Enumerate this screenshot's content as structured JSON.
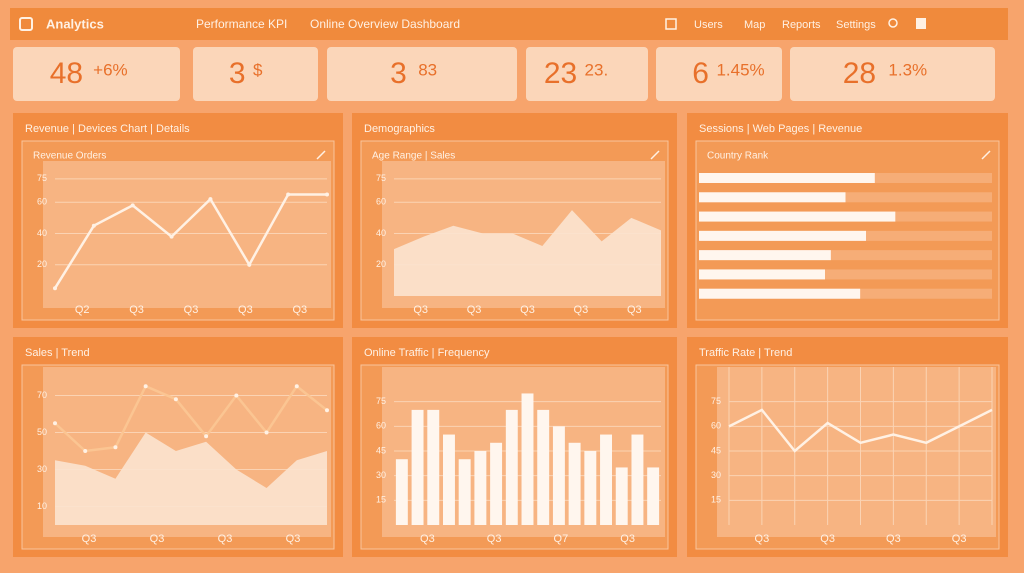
{
  "header": {
    "brand": "Analytics",
    "subtitle": "Performance KPI",
    "title": "Online Overview Dashboard",
    "nav": [
      "Users",
      "Map",
      "Reports",
      "Settings"
    ]
  },
  "kpis": [
    {
      "value": "48",
      "note": "+6%"
    },
    {
      "value": "3",
      "note": "$"
    },
    {
      "value": "3",
      "note": "83"
    },
    {
      "value": "23",
      "note": "23."
    },
    {
      "value": "6",
      "note": "1.45%"
    },
    {
      "value": "28",
      "note": "1.3%"
    }
  ],
  "panels": [
    {
      "title": "Revenue | Devices Chart | Details",
      "subtitle": "Revenue Orders",
      "chart": {
        "type": "line",
        "color": "#fff1e4",
        "values": [
          5,
          45,
          58,
          38,
          62,
          20,
          65,
          65
        ],
        "ylim": [
          0,
          80
        ],
        "yticks": [
          20,
          40,
          60,
          75
        ],
        "xlabels": [
          "Q2",
          "Q3",
          "Q3",
          "Q3",
          "Q3"
        ]
      }
    },
    {
      "title": "Demographics",
      "subtitle": "Age Range | Sales",
      "chart": {
        "type": "area",
        "color": "#fbe3cf",
        "values": [
          30,
          38,
          45,
          40,
          40,
          32,
          55,
          35,
          50,
          42
        ],
        "ylim": [
          0,
          80
        ],
        "yticks": [
          20,
          40,
          60,
          75
        ],
        "xlabels": [
          "Q3",
          "Q3",
          "Q3",
          "Q3",
          "Q3"
        ]
      }
    },
    {
      "title": "Sessions | Web Pages | Revenue",
      "subtitle": "Country Rank",
      "chart": {
        "type": "hbar",
        "color": "#fff6ee",
        "values": [
          60,
          50,
          67,
          57,
          45,
          43,
          55
        ],
        "xlim": [
          0,
          100
        ]
      }
    },
    {
      "title": "Sales | Trend",
      "subtitle": "",
      "chart": {
        "type": "combo",
        "color": "#fbe3cf",
        "values": [
          55,
          40,
          42,
          75,
          68,
          48,
          70,
          50,
          75,
          62
        ],
        "area_values": [
          35,
          32,
          25,
          50,
          40,
          45,
          30,
          20,
          35,
          40
        ],
        "ylim": [
          0,
          80
        ],
        "yticks": [
          10,
          30,
          50,
          70
        ],
        "xlabels": [
          "Q3",
          "Q3",
          "Q3",
          "Q3"
        ]
      }
    },
    {
      "title": "Online Traffic | Frequency",
      "subtitle": "",
      "chart": {
        "type": "bar",
        "color": "#fff6ee",
        "values": [
          40,
          70,
          70,
          55,
          40,
          45,
          50,
          70,
          80,
          70,
          60,
          50,
          45,
          55,
          35,
          55,
          35
        ],
        "ylim": [
          0,
          90
        ],
        "yticks": [
          15,
          30,
          45,
          60,
          75
        ],
        "xlabels": [
          "Q3",
          "Q3",
          "Q7",
          "Q3"
        ]
      }
    },
    {
      "title": "Traffic Rate | Trend",
      "subtitle": "",
      "chart": {
        "type": "gridline",
        "color": "#fff1e4",
        "values": [
          60,
          70,
          45,
          62,
          50,
          55,
          50,
          60,
          70
        ],
        "ylim": [
          0,
          90
        ],
        "yticks": [
          15,
          30,
          45,
          60,
          75
        ],
        "xlabels": [
          "Q3",
          "Q3",
          "Q3",
          "Q3"
        ]
      }
    }
  ]
}
